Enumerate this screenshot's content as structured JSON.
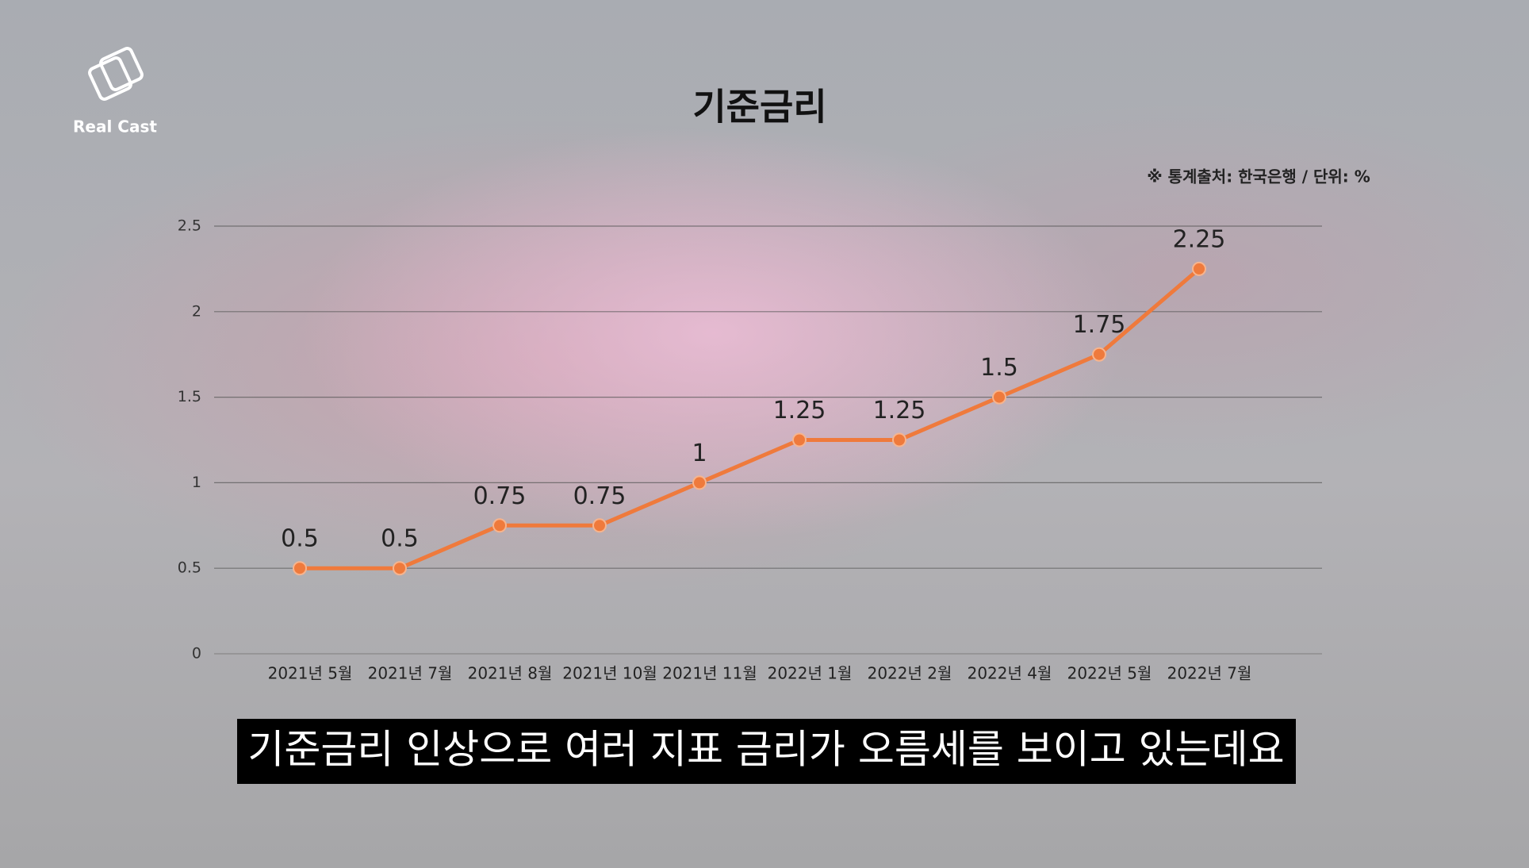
{
  "chart_data": {
    "type": "line",
    "title": "기준금리",
    "source_note": "※ 통계출처: 한국은행 / 단위: %",
    "logo_text": "Real Cast",
    "caption": "기준금리 인상으로 여러 지표 금리가 오름세를 보이고 있는데요",
    "categories": [
      "2021년 5월",
      "2021년 7월",
      "2021년 8월",
      "2021년 10월",
      "2021년 11월",
      "2022년 1월",
      "2022년 2월",
      "2022년 4월",
      "2022년 5월",
      "2022년 7월"
    ],
    "values": [
      0.5,
      0.5,
      0.75,
      0.75,
      1,
      1.25,
      1.25,
      1.5,
      1.75,
      2.25
    ],
    "color": "#ef7a3c",
    "ylim": [
      0,
      2.5
    ],
    "yticks": [
      0,
      0.5,
      1,
      1.5,
      2,
      2.5
    ],
    "grid": true
  }
}
